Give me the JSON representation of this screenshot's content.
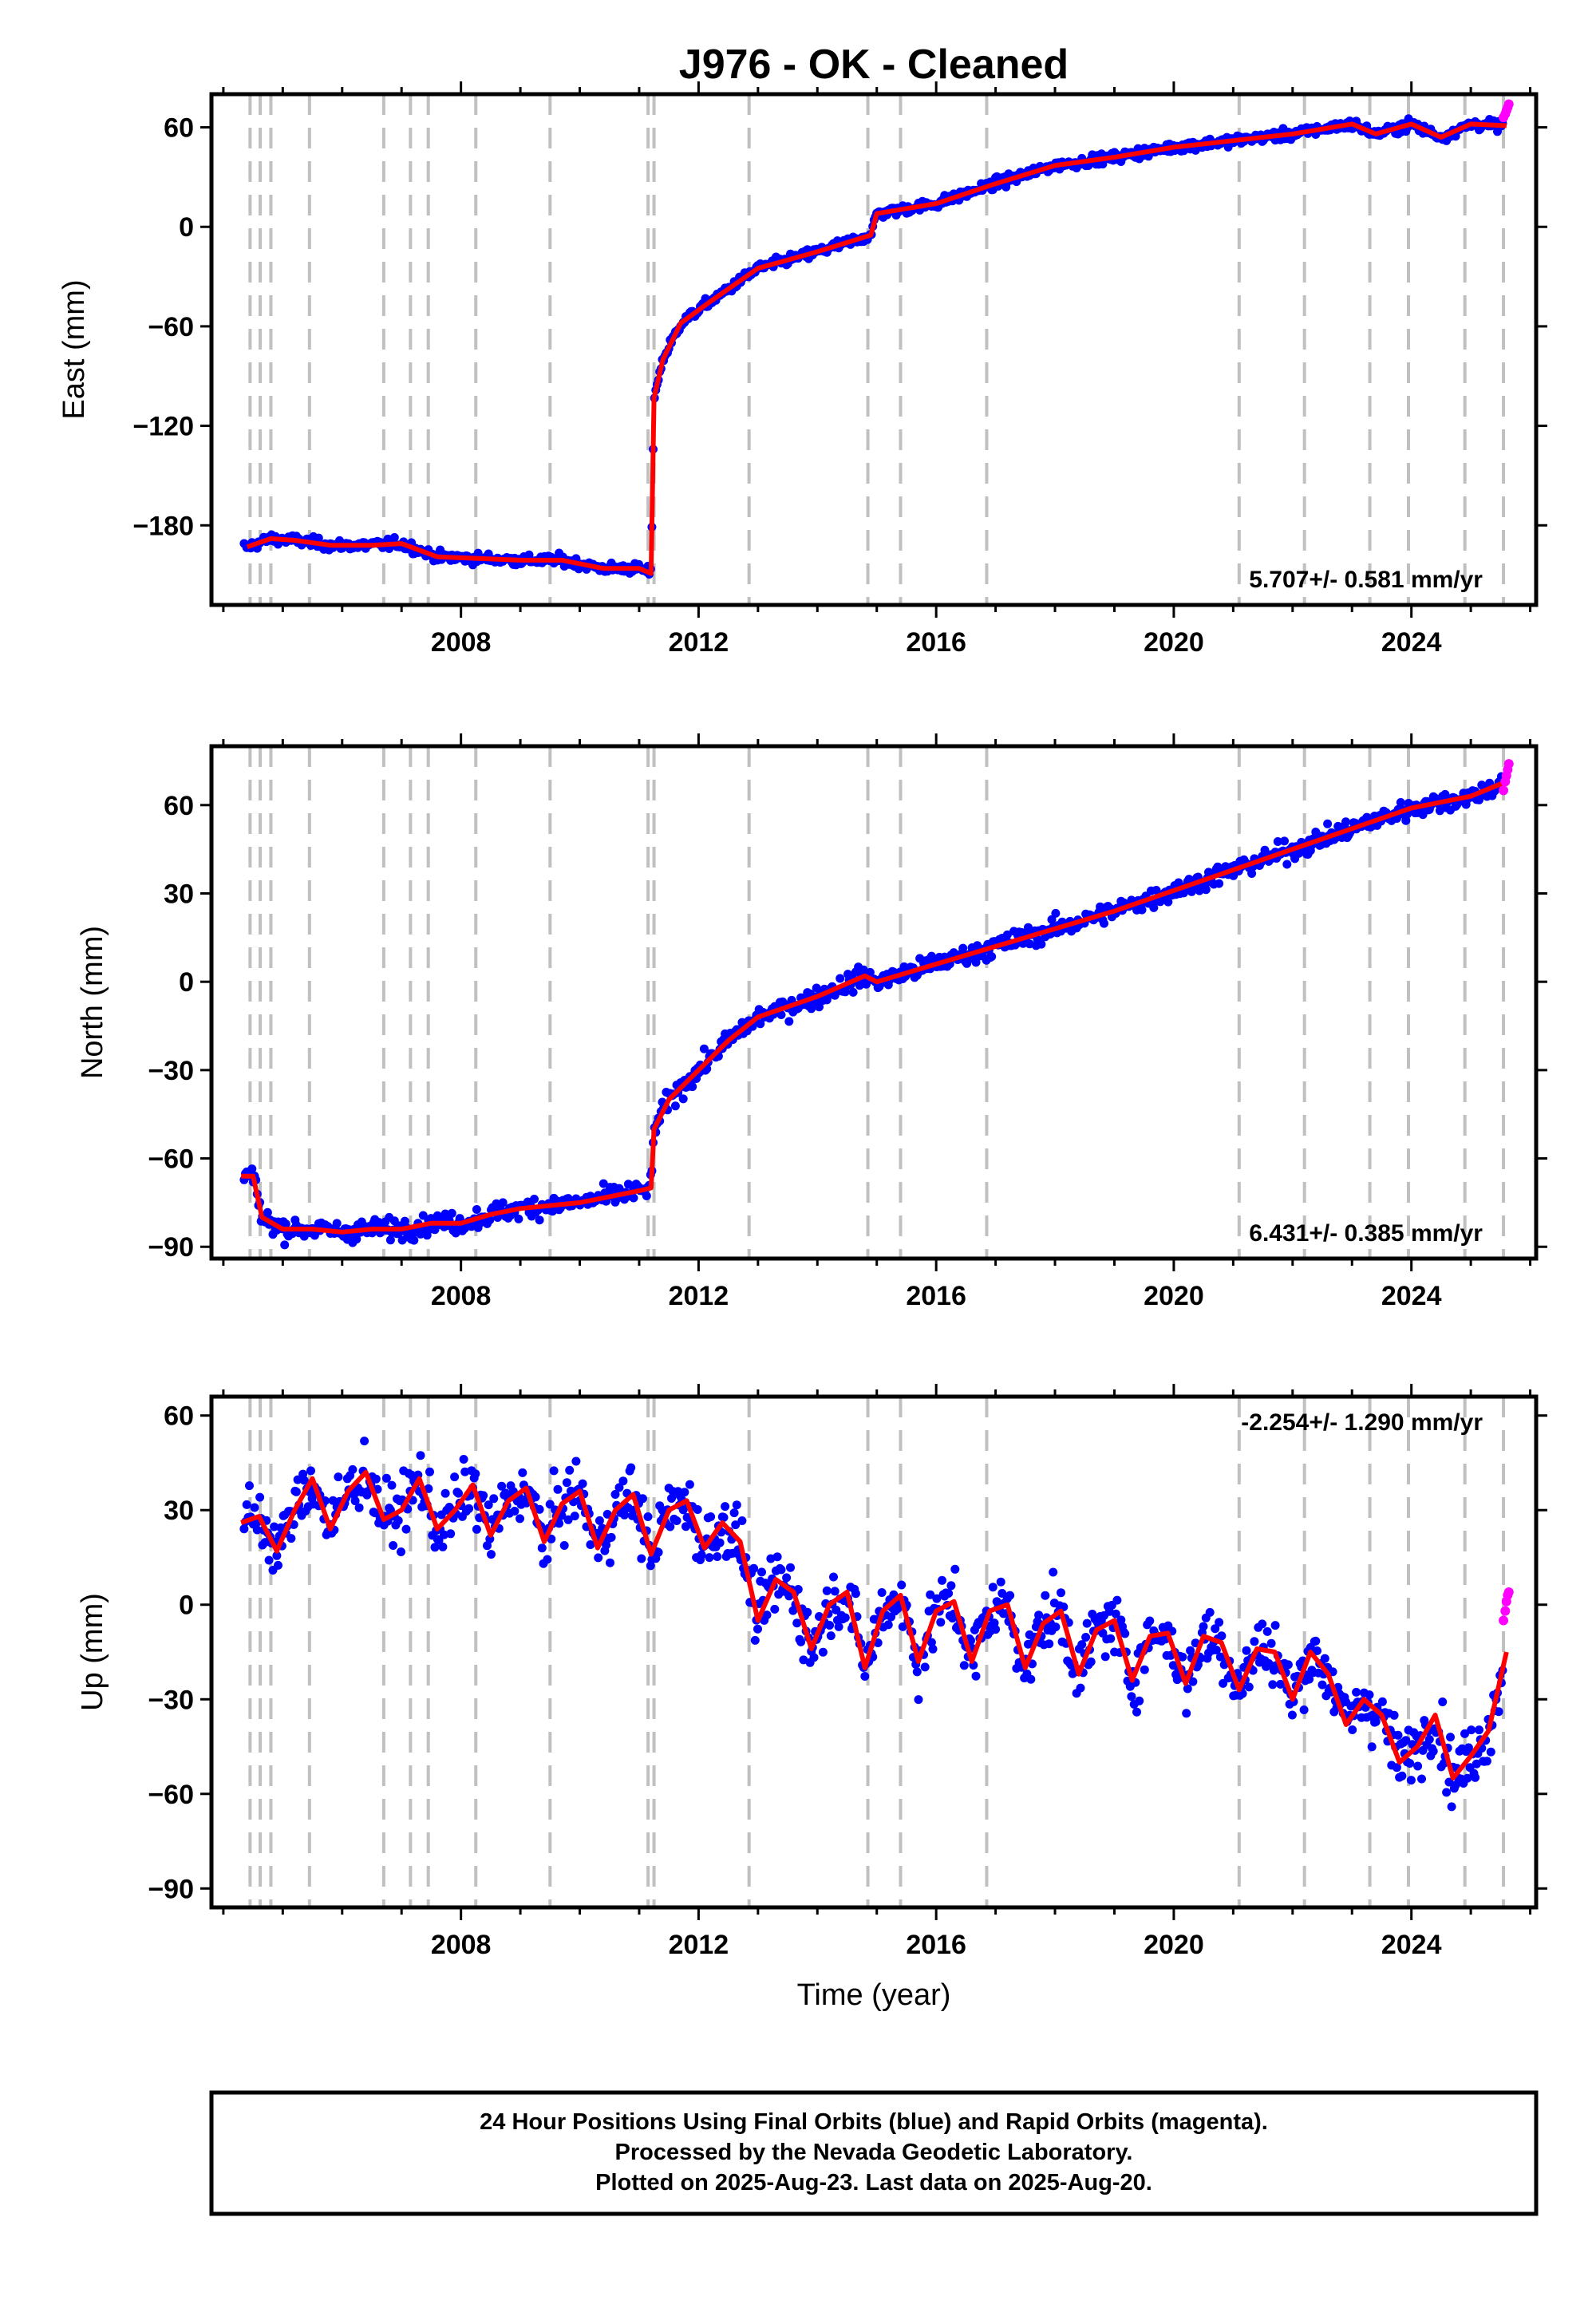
{
  "title": "J976  - OK - Cleaned",
  "colors": {
    "final": "#0000ff",
    "rapid": "#ff00ff",
    "model": "#ff0000",
    "event": "#c0c0c0"
  },
  "chart_data": [
    {
      "type": "scatter",
      "component": "east",
      "ylabel": "East (mm)",
      "xlabel": "",
      "xlim": [
        2003.8,
        2026.1
      ],
      "ylim": [
        -228,
        80
      ],
      "yticks": [
        60,
        0,
        -60,
        -120,
        -180
      ],
      "xticks": [
        2008,
        2012,
        2016,
        2020,
        2024
      ],
      "rate_label": "5.707+/- 0.581 mm/yr",
      "series": [
        {
          "name": "",
          "x": [
            2004.4,
            2004.8,
            2005.2,
            2005.8,
            2006.5,
            2007.0,
            2007.6,
            2008.3,
            2009.0,
            2009.7,
            2010.4,
            2011.0,
            2011.2,
            2011.25,
            2011.4,
            2011.7,
            2012.2,
            2013.0,
            2014.0,
            2014.9,
            2015.0,
            2016.0,
            2017.0,
            2018.0,
            2019.0,
            2020.0,
            2021.0,
            2022.0,
            2023.0,
            2023.4,
            2024.0,
            2024.5,
            2025.0,
            2025.6
          ],
          "y": [
            -193,
            -188,
            -189,
            -192,
            -192,
            -191,
            -199,
            -200,
            -201,
            -201,
            -206,
            -206,
            -209,
            -103,
            -80,
            -58,
            -45,
            -25,
            -15,
            -5,
            8,
            14,
            26,
            37,
            42,
            48,
            52,
            56,
            62,
            56,
            62,
            54,
            62,
            61
          ]
        }
      ],
      "rapid": {
        "x": [
          2025.55,
          2025.58,
          2025.6,
          2025.62,
          2025.64
        ],
        "y": [
          66,
          68,
          70,
          72,
          74
        ]
      },
      "events": [
        2004.45,
        2004.62,
        2004.8,
        2005.45,
        2006.7,
        2007.15,
        2007.45,
        2008.25,
        2009.5,
        2011.15,
        2011.25,
        2012.85,
        2014.85,
        2015.4,
        2016.85,
        2021.1,
        2022.2,
        2023.3,
        2023.95,
        2024.9,
        2025.55
      ]
    },
    {
      "type": "scatter",
      "component": "north",
      "ylabel": "North (mm)",
      "xlabel": "",
      "xlim": [
        2003.8,
        2026.1
      ],
      "ylim": [
        -94,
        80
      ],
      "yticks": [
        60,
        30,
        0,
        -30,
        -60,
        -90
      ],
      "xticks": [
        2008,
        2012,
        2016,
        2020,
        2024
      ],
      "rate_label": "6.431+/- 0.385 mm/yr",
      "series": [
        {
          "name": "",
          "x": [
            2004.3,
            2004.5,
            2004.65,
            2005.0,
            2005.5,
            2006.0,
            2006.5,
            2007.0,
            2007.5,
            2008.0,
            2008.5,
            2009.0,
            2009.5,
            2010.0,
            2010.5,
            2011.0,
            2011.2,
            2011.25,
            2011.5,
            2012.0,
            2012.5,
            2013.0,
            2014.0,
            2014.8,
            2015.0,
            2016.0,
            2017.0,
            2018.0,
            2019.0,
            2020.0,
            2021.0,
            2022.0,
            2023.0,
            2024.0,
            2025.0,
            2025.6
          ],
          "y": [
            -66,
            -66,
            -80,
            -84,
            -84,
            -85,
            -84,
            -84,
            -82,
            -82,
            -79,
            -77,
            -76,
            -75,
            -73,
            -71,
            -70,
            -50,
            -40,
            -30,
            -20,
            -12,
            -5,
            2,
            0,
            6,
            12,
            18,
            24,
            31,
            38,
            45,
            52,
            59,
            63,
            68
          ]
        }
      ],
      "rapid": {
        "x": [
          2025.55,
          2025.58,
          2025.6,
          2025.62,
          2025.64
        ],
        "y": [
          65,
          68,
          70,
          72,
          74
        ]
      },
      "events": [
        2004.45,
        2004.62,
        2004.8,
        2005.45,
        2006.7,
        2007.15,
        2007.45,
        2008.25,
        2009.5,
        2011.15,
        2011.25,
        2012.85,
        2014.85,
        2015.4,
        2016.85,
        2021.1,
        2022.2,
        2023.3,
        2023.95,
        2024.9,
        2025.55
      ]
    },
    {
      "type": "scatter",
      "component": "up",
      "ylabel": "Up (mm)",
      "xlabel": "Time (year)",
      "xlim": [
        2003.8,
        2026.1
      ],
      "ylim": [
        -96,
        66
      ],
      "yticks": [
        60,
        30,
        0,
        -30,
        -60,
        -90
      ],
      "xticks": [
        2008,
        2012,
        2016,
        2020,
        2024
      ],
      "rate_label": "-2.254+/- 1.290 mm/yr",
      "series": [
        {
          "name": "",
          "x": [
            2004.3,
            2004.6,
            2004.9,
            2005.2,
            2005.5,
            2005.8,
            2006.1,
            2006.4,
            2006.7,
            2007.0,
            2007.3,
            2007.6,
            2007.9,
            2008.2,
            2008.5,
            2008.8,
            2009.1,
            2009.4,
            2009.7,
            2010.0,
            2010.3,
            2010.6,
            2010.9,
            2011.2,
            2011.5,
            2011.8,
            2012.1,
            2012.4,
            2012.7,
            2013.0,
            2013.3,
            2013.6,
            2013.9,
            2014.2,
            2014.5,
            2014.8,
            2015.1,
            2015.4,
            2015.7,
            2016.0,
            2016.3,
            2016.6,
            2016.9,
            2017.2,
            2017.5,
            2017.8,
            2018.1,
            2018.4,
            2018.7,
            2019.0,
            2019.3,
            2019.6,
            2019.9,
            2020.2,
            2020.5,
            2020.8,
            2021.1,
            2021.4,
            2021.7,
            2022.0,
            2022.3,
            2022.6,
            2022.9,
            2023.2,
            2023.5,
            2023.8,
            2024.1,
            2024.4,
            2024.7,
            2025.0,
            2025.3,
            2025.6
          ],
          "y": [
            26,
            28,
            17,
            30,
            40,
            24,
            36,
            42,
            27,
            30,
            40,
            24,
            30,
            38,
            22,
            33,
            37,
            20,
            32,
            36,
            18,
            30,
            35,
            16,
            30,
            33,
            18,
            26,
            20,
            -5,
            8,
            4,
            -14,
            0,
            4,
            -20,
            -2,
            3,
            -18,
            -2,
            1,
            -18,
            -2,
            0,
            -20,
            -6,
            -2,
            -22,
            -8,
            -5,
            -24,
            -10,
            -9,
            -25,
            -10,
            -12,
            -27,
            -14,
            -15,
            -30,
            -15,
            -22,
            -38,
            -30,
            -35,
            -50,
            -45,
            -35,
            -55,
            -48,
            -40,
            -15
          ]
        }
      ],
      "rapid": {
        "x": [
          2025.55,
          2025.58,
          2025.6,
          2025.62,
          2025.64
        ],
        "y": [
          -5,
          -2,
          1,
          3,
          4
        ]
      },
      "events": [
        2004.45,
        2004.62,
        2004.8,
        2005.45,
        2006.7,
        2007.15,
        2007.45,
        2008.25,
        2009.5,
        2011.15,
        2011.25,
        2012.85,
        2014.85,
        2015.4,
        2016.85,
        2021.1,
        2022.2,
        2023.3,
        2023.95,
        2024.9,
        2025.55
      ]
    }
  ],
  "footer": {
    "line1": "24 Hour Positions Using Final Orbits (blue) and Rapid Orbits (magenta).",
    "line2": "Processed by the Nevada Geodetic Laboratory.",
    "line3": "Plotted on 2025-Aug-23. Last data on 2025-Aug-20."
  }
}
